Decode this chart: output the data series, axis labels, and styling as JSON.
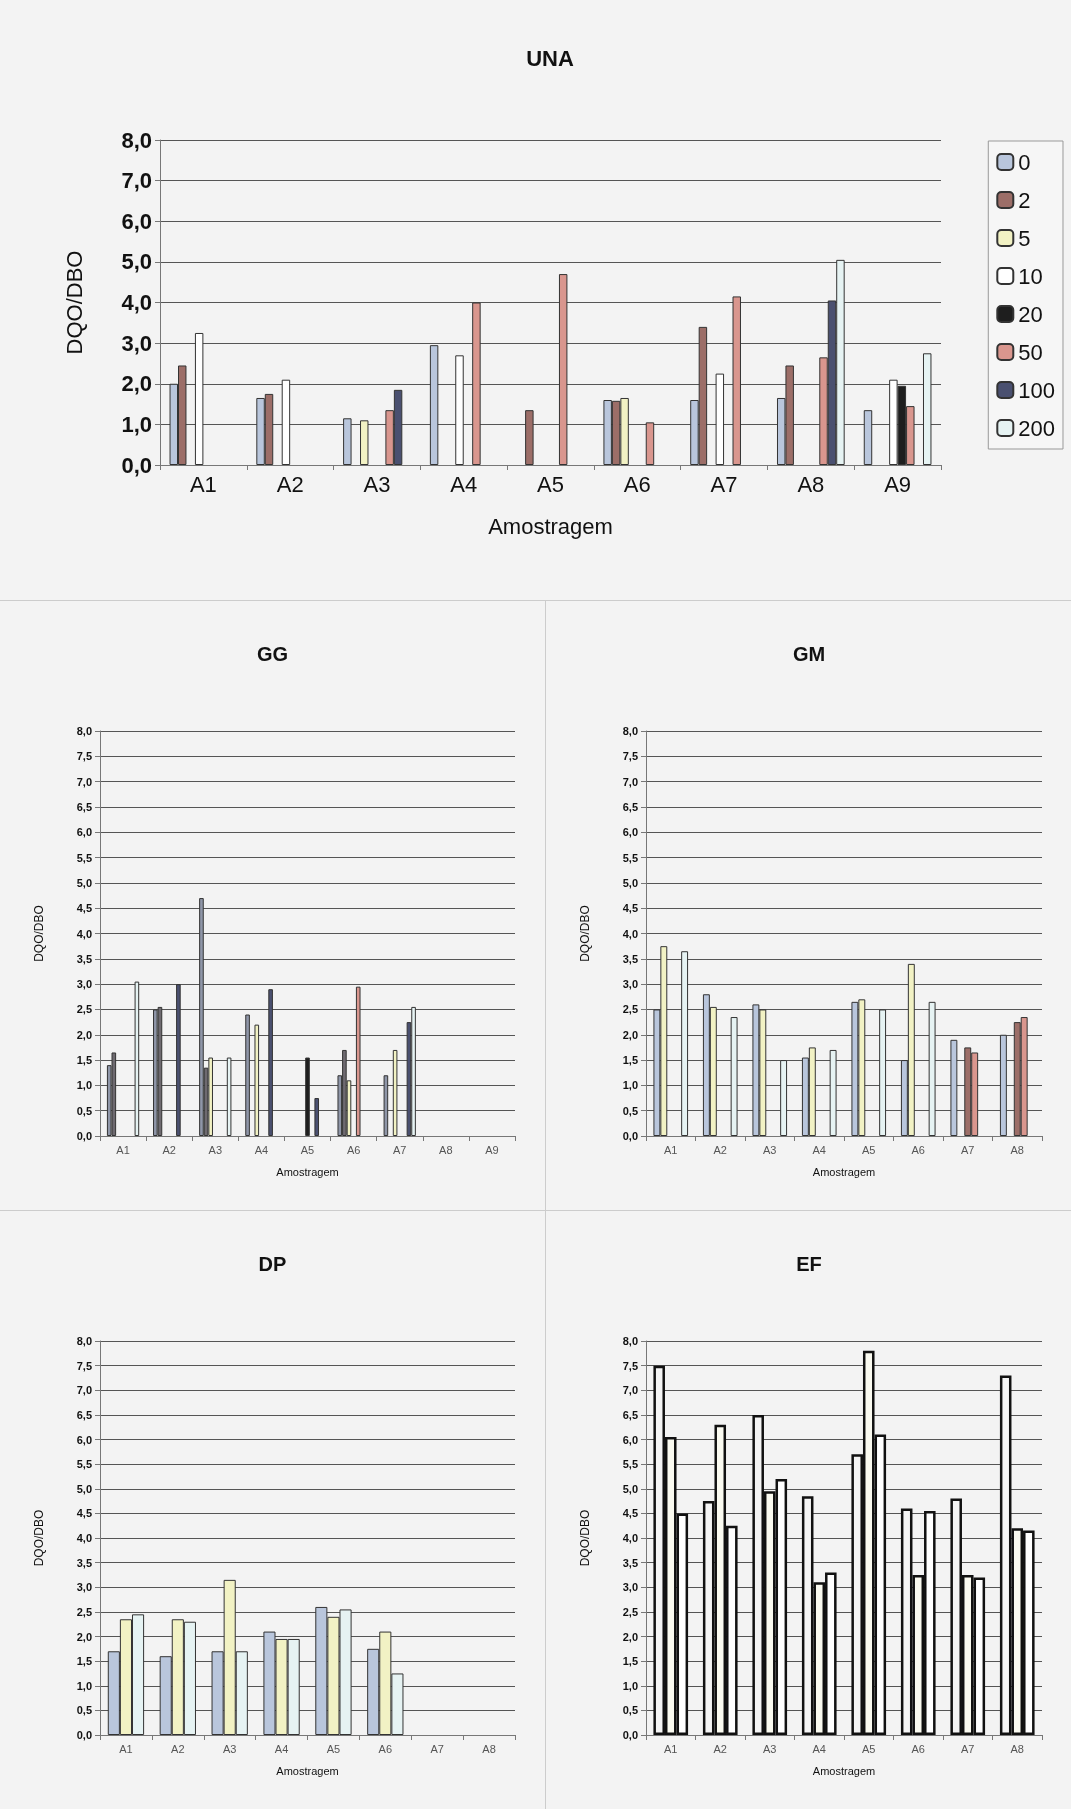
{
  "chart_data": [
    {
      "type": "bar",
      "title": "UNA",
      "xlabel": "Amostragem",
      "ylabel": "DQO/DBO",
      "categories": [
        "A1",
        "A2",
        "A3",
        "A4",
        "A5",
        "A6",
        "A7",
        "A8",
        "A9"
      ],
      "series": [
        {
          "name": "0",
          "color": "#b9c6dc",
          "values": [
            2.0,
            1.65,
            1.15,
            2.95,
            null,
            1.6,
            1.6,
            1.65,
            1.35
          ]
        },
        {
          "name": "2",
          "color": "#9c6e68",
          "values": [
            2.45,
            1.75,
            null,
            null,
            1.35,
            1.58,
            3.4,
            2.45,
            null
          ]
        },
        {
          "name": "5",
          "color": "#f2f2c4",
          "values": [
            null,
            null,
            1.1,
            null,
            null,
            1.65,
            null,
            null,
            null
          ]
        },
        {
          "name": "10",
          "color": "#ffffff",
          "values": [
            3.25,
            2.1,
            null,
            2.7,
            null,
            null,
            2.25,
            null,
            2.1
          ]
        },
        {
          "name": "20",
          "color": "#1e1e1e",
          "values": [
            null,
            null,
            null,
            null,
            null,
            null,
            null,
            null,
            1.95
          ]
        },
        {
          "name": "50",
          "color": "#d9968e",
          "values": [
            null,
            null,
            1.35,
            4.0,
            4.7,
            1.05,
            4.15,
            2.65,
            1.45
          ]
        },
        {
          "name": "100",
          "color": "#4a5070",
          "values": [
            null,
            null,
            1.85,
            null,
            null,
            null,
            null,
            4.05,
            null
          ]
        },
        {
          "name": "200",
          "color": "#e6f3f3",
          "values": [
            null,
            null,
            null,
            null,
            null,
            null,
            null,
            5.05,
            2.75
          ]
        }
      ],
      "ylim": [
        0,
        8
      ],
      "yticks": [
        {
          "value": 0,
          "label": "0,0"
        },
        {
          "value": 1,
          "label": "1,0"
        },
        {
          "value": 2,
          "label": "2,0"
        },
        {
          "value": 3,
          "label": "3,0"
        },
        {
          "value": 4,
          "label": "4,0"
        },
        {
          "value": 5,
          "label": "5,0"
        },
        {
          "value": 6,
          "label": "6,0"
        },
        {
          "value": 7,
          "label": "7,0"
        },
        {
          "value": 8,
          "label": "8,0"
        }
      ],
      "grid": "y",
      "legend": "right"
    },
    {
      "type": "bar",
      "title": "GG",
      "xlabel": "Amostragem",
      "ylabel": "DQO/DBO",
      "categories": [
        "A1",
        "A2",
        "A3",
        "A4",
        "A5",
        "A6",
        "A7",
        "A8",
        "A9"
      ],
      "series": [
        {
          "color": "#8f96a8",
          "values": [
            1.4,
            2.5,
            4.7,
            2.4,
            null,
            1.2,
            1.2,
            null,
            null
          ]
        },
        {
          "color": "#6e6a70",
          "values": [
            1.65,
            2.55,
            1.35,
            null,
            null,
            1.7,
            null,
            null,
            null
          ]
        },
        {
          "color": "#f2f2c4",
          "values": [
            null,
            null,
            1.55,
            2.2,
            null,
            1.1,
            1.7,
            null,
            null
          ]
        },
        {
          "color": "#1e1e1e",
          "values": [
            null,
            null,
            null,
            null,
            1.55,
            null,
            null,
            null,
            null
          ]
        },
        {
          "color": "#d9968e",
          "values": [
            null,
            null,
            null,
            null,
            null,
            2.95,
            null,
            null,
            null
          ]
        },
        {
          "color": "#4a5070",
          "values": [
            null,
            3.0,
            null,
            2.9,
            0.75,
            null,
            2.25,
            null,
            null
          ]
        },
        {
          "color": "#e6f3f3",
          "values": [
            3.05,
            null,
            1.55,
            null,
            null,
            null,
            2.55,
            null,
            null
          ]
        }
      ],
      "ylim": [
        0,
        8
      ],
      "yticks": [
        {
          "value": 0,
          "label": "0,0"
        },
        {
          "value": 0.5,
          "label": "0,5"
        },
        {
          "value": 1,
          "label": "1,0"
        },
        {
          "value": 1.5,
          "label": "1,5"
        },
        {
          "value": 2,
          "label": "2,0"
        },
        {
          "value": 2.5,
          "label": "2,5"
        },
        {
          "value": 3,
          "label": "3,0"
        },
        {
          "value": 3.5,
          "label": "3,5"
        },
        {
          "value": 4,
          "label": "4,0"
        },
        {
          "value": 4.5,
          "label": "4,5"
        },
        {
          "value": 5,
          "label": "5,0"
        },
        {
          "value": 5.5,
          "label": "5,5"
        },
        {
          "value": 6,
          "label": "6,0"
        },
        {
          "value": 6.5,
          "label": "6,5"
        },
        {
          "value": 7,
          "label": "7,0"
        },
        {
          "value": 7.5,
          "label": "7,5"
        },
        {
          "value": 8,
          "label": "8,0"
        }
      ],
      "grid": "y"
    },
    {
      "type": "bar",
      "title": "GM",
      "xlabel": "Amostragem",
      "ylabel": "DQO/DBO",
      "categories": [
        "A1",
        "A2",
        "A3",
        "A4",
        "A5",
        "A6",
        "A7",
        "A8"
      ],
      "series": [
        {
          "color": "#b9c6dc",
          "values": [
            2.5,
            2.8,
            2.6,
            1.55,
            2.65,
            1.5,
            1.9,
            2.0
          ]
        },
        {
          "color": "#f2f2c4",
          "values": [
            3.75,
            2.55,
            2.5,
            1.75,
            2.7,
            3.4,
            null,
            null
          ]
        },
        {
          "color": "#9c6e68",
          "values": [
            null,
            null,
            null,
            null,
            null,
            null,
            1.75,
            2.25
          ]
        },
        {
          "color": "#d9968e",
          "values": [
            null,
            null,
            null,
            null,
            null,
            null,
            1.65,
            2.35
          ]
        },
        {
          "color": "#e6f3f3",
          "values": [
            3.65,
            2.35,
            1.5,
            1.7,
            2.5,
            2.65,
            null,
            null
          ]
        }
      ],
      "ylim": [
        0,
        8
      ],
      "yticks": [
        {
          "value": 0,
          "label": "0,0"
        },
        {
          "value": 0.5,
          "label": "0,5"
        },
        {
          "value": 1,
          "label": "1,0"
        },
        {
          "value": 1.5,
          "label": "1,5"
        },
        {
          "value": 2,
          "label": "2,0"
        },
        {
          "value": 2.5,
          "label": "2,5"
        },
        {
          "value": 3,
          "label": "3,0"
        },
        {
          "value": 3.5,
          "label": "3,5"
        },
        {
          "value": 4,
          "label": "4,0"
        },
        {
          "value": 4.5,
          "label": "4,5"
        },
        {
          "value": 5,
          "label": "5,0"
        },
        {
          "value": 5.5,
          "label": "5,5"
        },
        {
          "value": 6,
          "label": "6,0"
        },
        {
          "value": 6.5,
          "label": "6,5"
        },
        {
          "value": 7,
          "label": "7,0"
        },
        {
          "value": 7.5,
          "label": "7,5"
        },
        {
          "value": 8,
          "label": "8,0"
        }
      ],
      "grid": "y"
    },
    {
      "type": "bar",
      "title": "DP",
      "xlabel": "Amostragem",
      "ylabel": "DQO/DBO",
      "categories": [
        "A1",
        "A2",
        "A3",
        "A4",
        "A5",
        "A6",
        "A7",
        "A8"
      ],
      "series": [
        {
          "color": "#b9c6dc",
          "values": [
            1.7,
            1.6,
            1.7,
            2.1,
            2.6,
            1.75,
            null,
            null
          ]
        },
        {
          "color": "#f2f2c4",
          "values": [
            2.35,
            2.35,
            3.15,
            1.95,
            2.4,
            2.1,
            null,
            null
          ]
        },
        {
          "color": "#e6f3f3",
          "values": [
            2.45,
            2.3,
            1.7,
            1.95,
            2.55,
            1.25,
            null,
            null
          ]
        }
      ],
      "ylim": [
        0,
        8
      ],
      "yticks": [
        {
          "value": 0,
          "label": "0,0"
        },
        {
          "value": 0.5,
          "label": "0,5"
        },
        {
          "value": 1,
          "label": "1,0"
        },
        {
          "value": 1.5,
          "label": "1,5"
        },
        {
          "value": 2,
          "label": "2,0"
        },
        {
          "value": 2.5,
          "label": "2,5"
        },
        {
          "value": 3,
          "label": "3,0"
        },
        {
          "value": 3.5,
          "label": "3,5"
        },
        {
          "value": 4,
          "label": "4,0"
        },
        {
          "value": 4.5,
          "label": "4,5"
        },
        {
          "value": 5,
          "label": "5,0"
        },
        {
          "value": 5.5,
          "label": "5,5"
        },
        {
          "value": 6,
          "label": "6,0"
        },
        {
          "value": 6.5,
          "label": "6,5"
        },
        {
          "value": 7,
          "label": "7,0"
        },
        {
          "value": 7.5,
          "label": "7,5"
        },
        {
          "value": 8,
          "label": "8,0"
        }
      ],
      "grid": "y"
    },
    {
      "type": "bar",
      "title": "EF",
      "xlabel": "Amostragem",
      "ylabel": "DQO/DBO",
      "categories": [
        "A1",
        "A2",
        "A3",
        "A4",
        "A5",
        "A6",
        "A7",
        "A8"
      ],
      "series": [
        {
          "color": "#f4f4f4",
          "values": [
            7.5,
            4.75,
            6.5,
            4.85,
            5.7,
            4.6,
            4.8,
            7.3
          ]
        },
        {
          "color": "#fafaf0",
          "values": [
            6.05,
            6.3,
            4.95,
            3.1,
            7.8,
            3.25,
            3.25,
            4.2
          ]
        },
        {
          "color": "#ffffff",
          "values": [
            4.5,
            4.25,
            5.2,
            3.3,
            6.1,
            4.55,
            3.2,
            4.15
          ]
        }
      ],
      "ylim": [
        0,
        8
      ],
      "yticks": [
        {
          "value": 0,
          "label": "0,0"
        },
        {
          "value": 0.5,
          "label": "0,5"
        },
        {
          "value": 1,
          "label": "1,0"
        },
        {
          "value": 1.5,
          "label": "1,5"
        },
        {
          "value": 2,
          "label": "2,0"
        },
        {
          "value": 2.5,
          "label": "2,5"
        },
        {
          "value": 3,
          "label": "3,0"
        },
        {
          "value": 3.5,
          "label": "3,5"
        },
        {
          "value": 4,
          "label": "4,0"
        },
        {
          "value": 4.5,
          "label": "4,5"
        },
        {
          "value": 5,
          "label": "5,0"
        },
        {
          "value": 5.5,
          "label": "5,5"
        },
        {
          "value": 6,
          "label": "6,0"
        },
        {
          "value": 6.5,
          "label": "6,5"
        },
        {
          "value": 7,
          "label": "7,0"
        },
        {
          "value": 7.5,
          "label": "7,5"
        },
        {
          "value": 8,
          "label": "8,0"
        }
      ],
      "grid": "y"
    }
  ]
}
